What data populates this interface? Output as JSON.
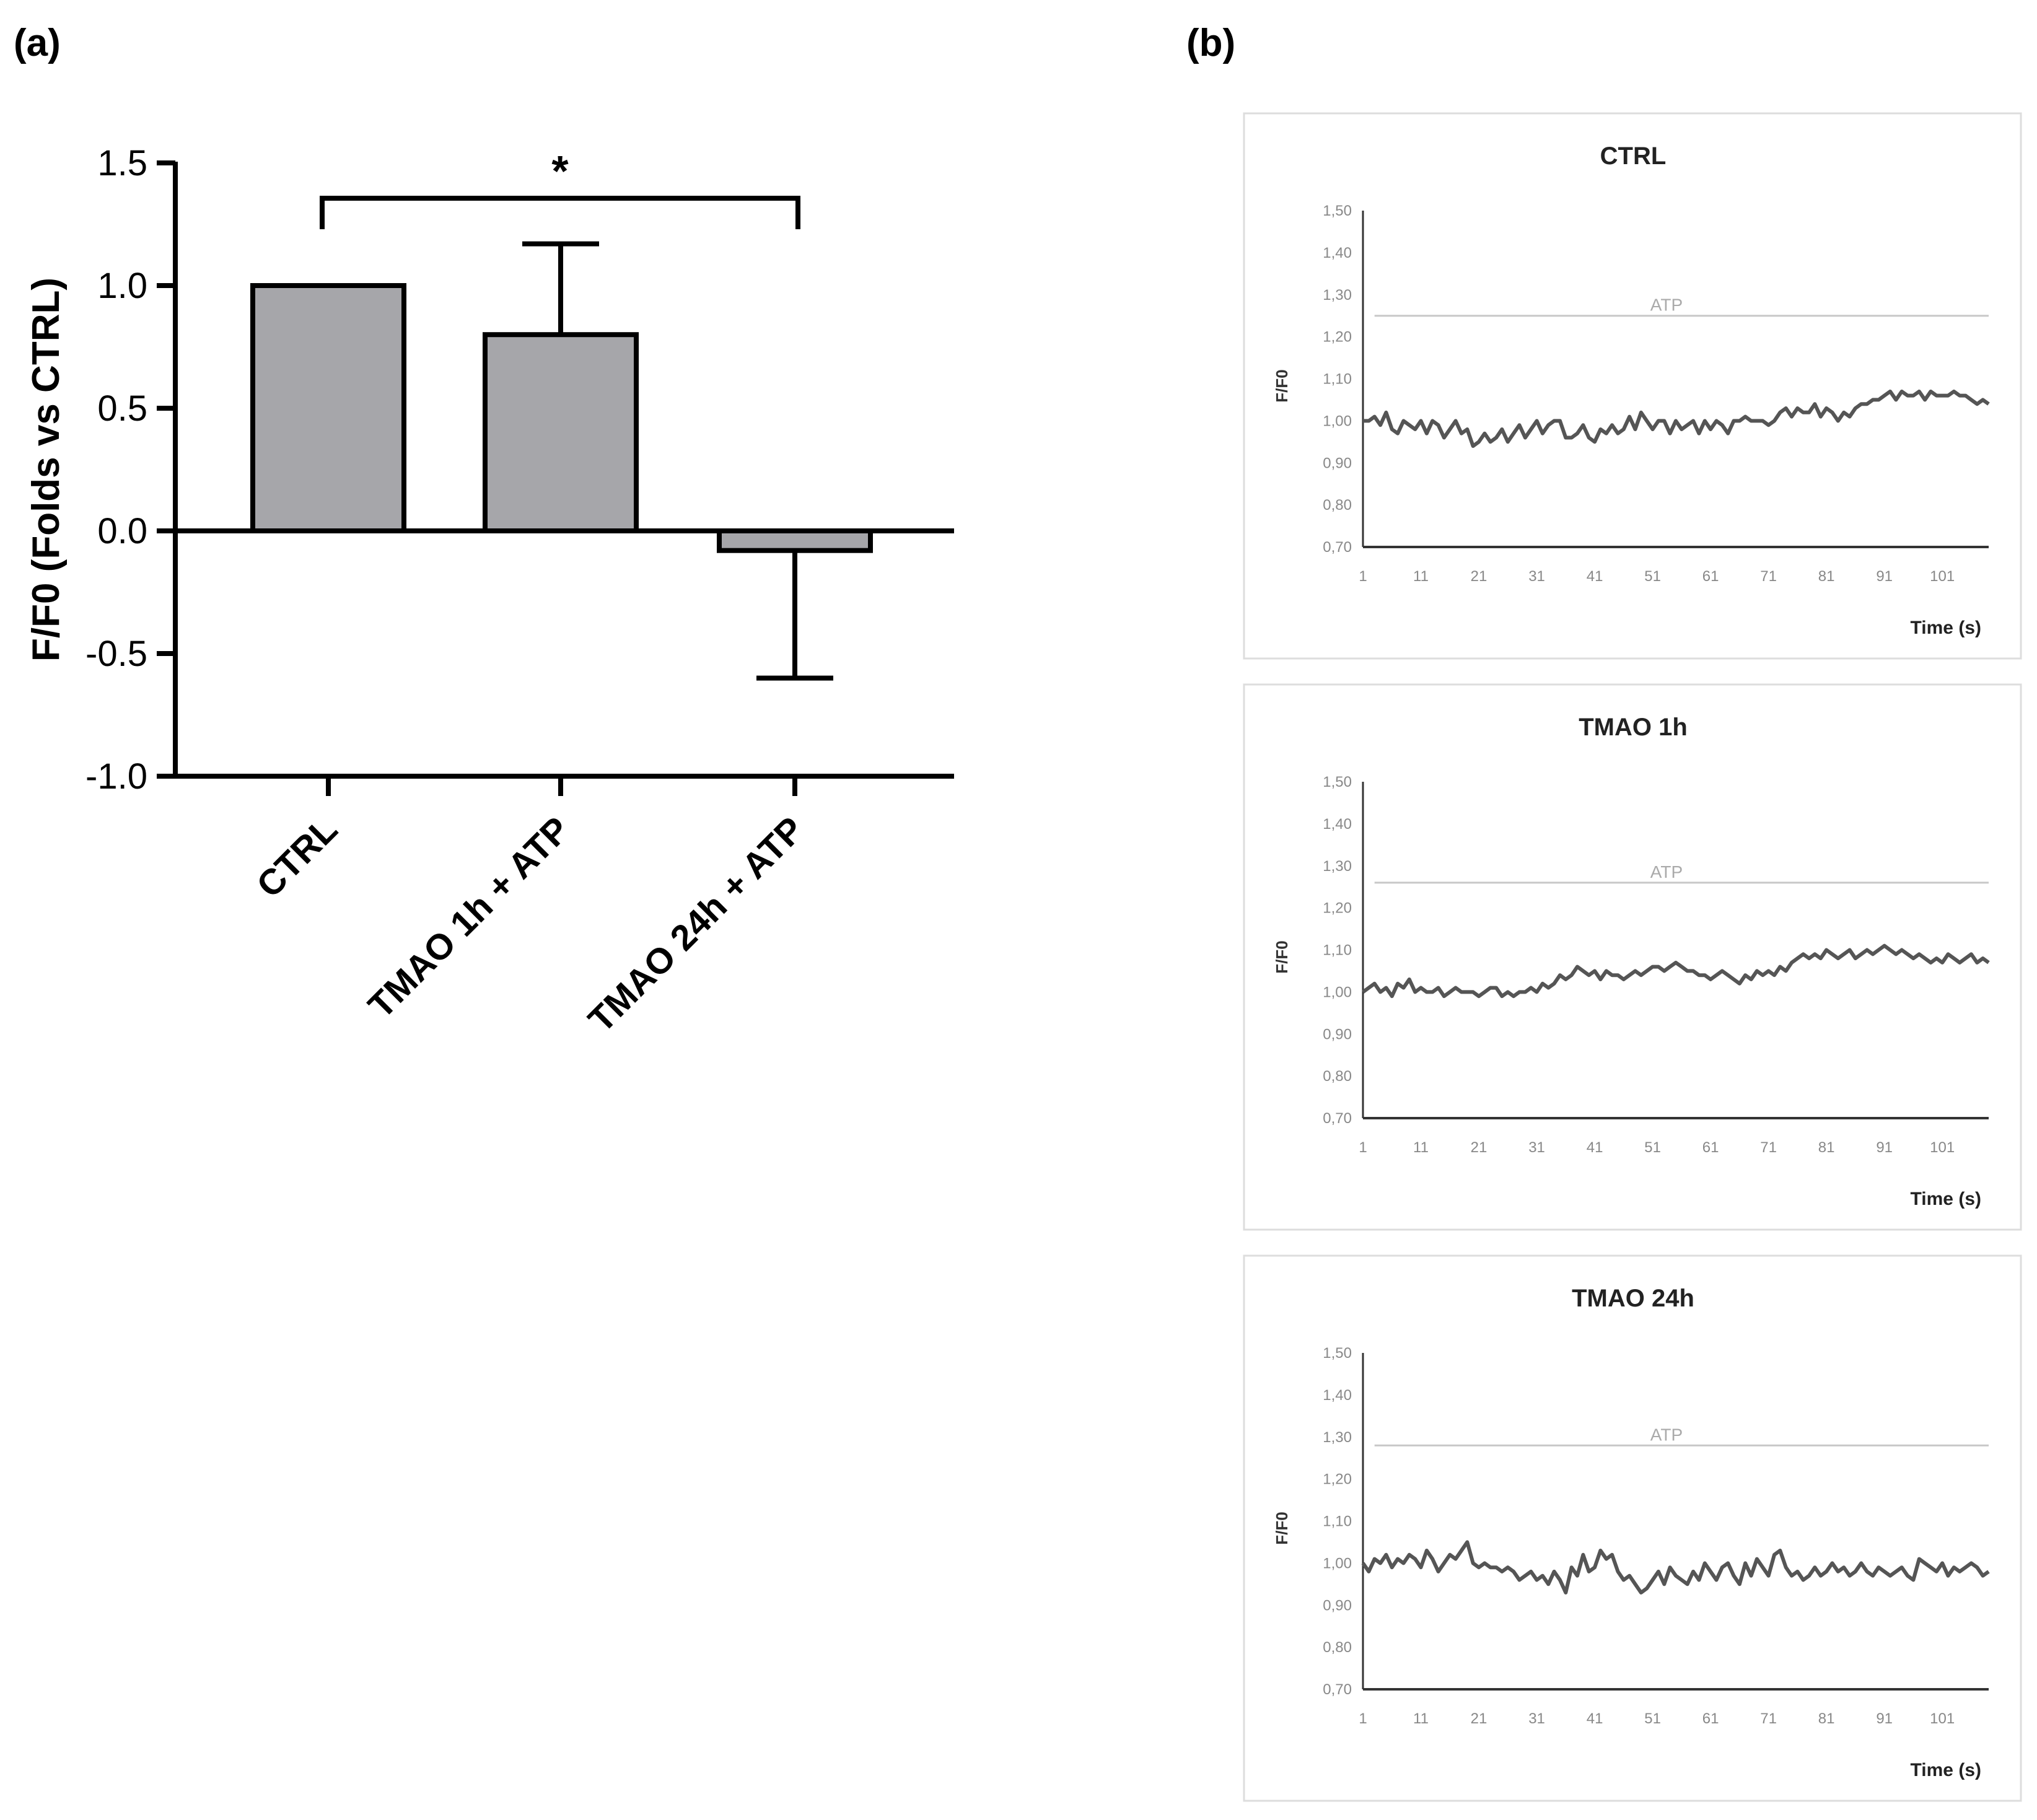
{
  "panels": {
    "a": "(a)",
    "b": "(b)"
  },
  "chart_data": [
    {
      "type": "bar",
      "ylabel": "F/F0 (Folds vs CTRL)",
      "xlabel": "",
      "ylim": [
        -1.0,
        1.5
      ],
      "yticks": [
        "1.5",
        "1.0",
        "0.5",
        "0.0",
        "-0.5",
        "-1.0"
      ],
      "yticks_values": [
        1.5,
        1.0,
        0.5,
        0.0,
        -0.5,
        -1.0
      ],
      "categories": [
        "CTRL",
        "TMAO 1h + ATP",
        "TMAO 24h + ATP"
      ],
      "values": [
        1.0,
        0.8,
        -0.08
      ],
      "error": [
        0,
        0.37,
        0.52
      ],
      "bar_color": "#a6a6aa",
      "significance": {
        "from": 0,
        "to": 2,
        "label": "*"
      }
    },
    {
      "type": "line",
      "title": "CTRL",
      "ylabel": "F/F0",
      "xlabel": "Time (s)",
      "ylim": [
        0.7,
        1.5
      ],
      "yticks": [
        "1,50",
        "1,40",
        "1,30",
        "1,20",
        "1,10",
        "1,00",
        "0,90",
        "0,80",
        "0,70"
      ],
      "xticks": [
        "1",
        "11",
        "21",
        "31",
        "41",
        "51",
        "61",
        "71",
        "81",
        "91",
        "101"
      ],
      "xlim": [
        1,
        109
      ],
      "annotation": {
        "label": "ATP",
        "y": 1.25
      },
      "line_color": "#555555",
      "x_start": 1,
      "values": [
        1.0,
        1.0,
        1.01,
        0.99,
        1.02,
        0.98,
        0.97,
        1.0,
        0.99,
        0.98,
        1.0,
        0.97,
        1.0,
        0.99,
        0.96,
        0.98,
        1.0,
        0.97,
        0.98,
        0.94,
        0.95,
        0.97,
        0.95,
        0.96,
        0.98,
        0.95,
        0.97,
        0.99,
        0.96,
        0.98,
        1.0,
        0.97,
        0.99,
        1.0,
        1.0,
        0.96,
        0.96,
        0.97,
        0.99,
        0.96,
        0.95,
        0.98,
        0.97,
        0.99,
        0.97,
        0.98,
        1.01,
        0.98,
        1.02,
        1.0,
        0.98,
        1.0,
        1.0,
        0.97,
        1.0,
        0.98,
        0.99,
        1.0,
        0.97,
        1.0,
        0.98,
        1.0,
        0.99,
        0.97,
        1.0,
        1.0,
        1.01,
        1.0,
        1.0,
        1.0,
        0.99,
        1.0,
        1.02,
        1.03,
        1.01,
        1.03,
        1.02,
        1.02,
        1.04,
        1.01,
        1.03,
        1.02,
        1.0,
        1.02,
        1.01,
        1.03,
        1.04,
        1.04,
        1.05,
        1.05,
        1.06,
        1.07,
        1.05,
        1.07,
        1.06,
        1.06,
        1.07,
        1.05,
        1.07,
        1.06,
        1.06,
        1.06,
        1.07,
        1.06,
        1.06,
        1.05,
        1.04,
        1.05,
        1.04
      ]
    },
    {
      "type": "line",
      "title": "TMAO 1h",
      "ylabel": "F/F0",
      "xlabel": "Time (s)",
      "ylim": [
        0.7,
        1.5
      ],
      "yticks": [
        "1,50",
        "1,40",
        "1,30",
        "1,20",
        "1,10",
        "1,00",
        "0,90",
        "0,80",
        "0,70"
      ],
      "xticks": [
        "1",
        "11",
        "21",
        "31",
        "41",
        "51",
        "61",
        "71",
        "81",
        "91",
        "101"
      ],
      "xlim": [
        1,
        109
      ],
      "annotation": {
        "label": "ATP",
        "y": 1.26
      },
      "line_color": "#555555",
      "x_start": 1,
      "values": [
        1.0,
        1.01,
        1.02,
        1.0,
        1.01,
        0.99,
        1.02,
        1.01,
        1.03,
        1.0,
        1.01,
        1.0,
        1.0,
        1.01,
        0.99,
        1.0,
        1.01,
        1.0,
        1.0,
        1.0,
        0.99,
        1.0,
        1.01,
        1.01,
        0.99,
        1.0,
        0.99,
        1.0,
        1.0,
        1.01,
        1.0,
        1.02,
        1.01,
        1.02,
        1.04,
        1.03,
        1.04,
        1.06,
        1.05,
        1.04,
        1.05,
        1.03,
        1.05,
        1.04,
        1.04,
        1.03,
        1.04,
        1.05,
        1.04,
        1.05,
        1.06,
        1.06,
        1.05,
        1.06,
        1.07,
        1.06,
        1.05,
        1.05,
        1.04,
        1.04,
        1.03,
        1.04,
        1.05,
        1.04,
        1.03,
        1.02,
        1.04,
        1.03,
        1.05,
        1.04,
        1.05,
        1.04,
        1.06,
        1.05,
        1.07,
        1.08,
        1.09,
        1.08,
        1.09,
        1.08,
        1.1,
        1.09,
        1.08,
        1.09,
        1.1,
        1.08,
        1.09,
        1.1,
        1.09,
        1.1,
        1.11,
        1.1,
        1.09,
        1.1,
        1.09,
        1.08,
        1.09,
        1.08,
        1.07,
        1.08,
        1.07,
        1.09,
        1.08,
        1.07,
        1.08,
        1.09,
        1.07,
        1.08,
        1.07
      ]
    },
    {
      "type": "line",
      "title": "TMAO 24h",
      "ylabel": "F/F0",
      "xlabel": "Time (s)",
      "ylim": [
        0.7,
        1.5
      ],
      "yticks": [
        "1,50",
        "1,40",
        "1,30",
        "1,20",
        "1,10",
        "1,00",
        "0,90",
        "0,80",
        "0,70"
      ],
      "xticks": [
        "1",
        "11",
        "21",
        "31",
        "41",
        "51",
        "61",
        "71",
        "81",
        "91",
        "101"
      ],
      "xlim": [
        1,
        109
      ],
      "annotation": {
        "label": "ATP",
        "y": 1.28
      },
      "line_color": "#555555",
      "x_start": 1,
      "values": [
        1.0,
        0.98,
        1.01,
        1.0,
        1.02,
        0.99,
        1.01,
        1.0,
        1.02,
        1.01,
        0.99,
        1.03,
        1.01,
        0.98,
        1.0,
        1.02,
        1.01,
        1.03,
        1.05,
        1.0,
        0.99,
        1.0,
        0.99,
        0.99,
        0.98,
        0.99,
        0.98,
        0.96,
        0.97,
        0.98,
        0.96,
        0.97,
        0.95,
        0.98,
        0.96,
        0.93,
        0.99,
        0.97,
        1.02,
        0.98,
        0.99,
        1.03,
        1.01,
        1.02,
        0.98,
        0.96,
        0.97,
        0.95,
        0.93,
        0.94,
        0.96,
        0.98,
        0.95,
        0.99,
        0.97,
        0.96,
        0.95,
        0.98,
        0.96,
        1.0,
        0.98,
        0.96,
        0.99,
        1.0,
        0.97,
        0.95,
        1.0,
        0.97,
        1.01,
        0.99,
        0.97,
        1.02,
        1.03,
        0.99,
        0.97,
        0.98,
        0.96,
        0.97,
        0.99,
        0.97,
        0.98,
        1.0,
        0.98,
        0.99,
        0.97,
        0.98,
        1.0,
        0.98,
        0.97,
        0.99,
        0.98,
        0.97,
        0.98,
        0.99,
        0.97,
        0.96,
        1.01,
        1.0,
        0.99,
        0.98,
        1.0,
        0.97,
        0.99,
        0.98,
        0.99,
        1.0,
        0.99,
        0.97,
        0.98
      ]
    }
  ]
}
